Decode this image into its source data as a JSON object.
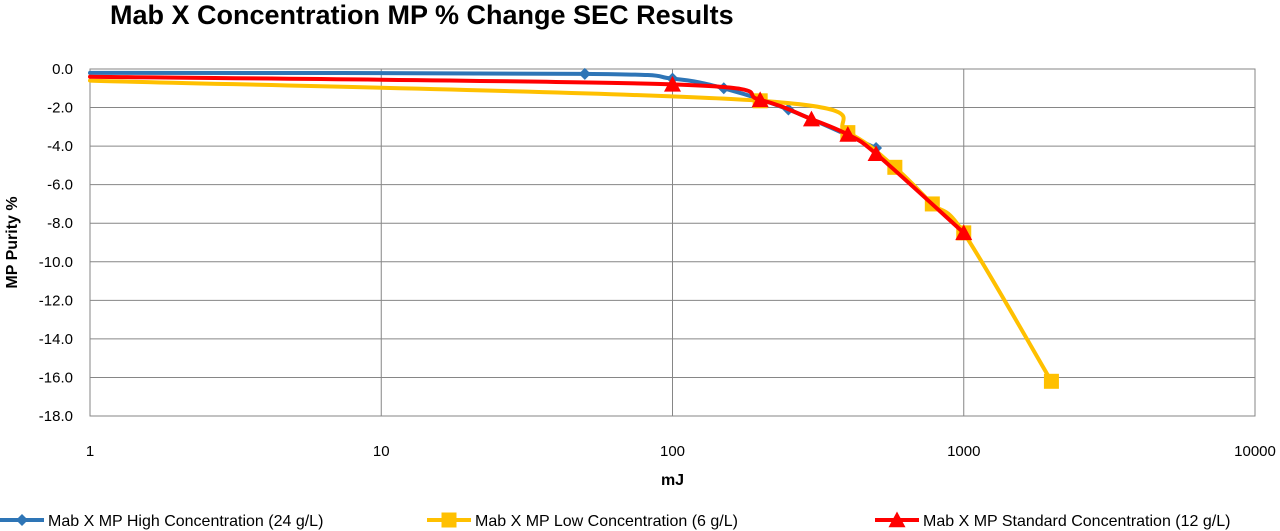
{
  "chart_data": {
    "type": "line",
    "title": "Mab X Concentration MP % Change SEC Results",
    "xlabel": "mJ",
    "ylabel": "MP Purity %",
    "x_scale": "log",
    "xlim": [
      1,
      10000
    ],
    "ylim": [
      -18,
      0
    ],
    "x_ticks": [
      1,
      10,
      100,
      1000,
      10000
    ],
    "x_tick_labels": [
      "1",
      "10",
      "100",
      "1000",
      "10000"
    ],
    "y_ticks": [
      0,
      -2,
      -4,
      -6,
      -8,
      -10,
      -12,
      -14,
      -16,
      -18
    ],
    "y_tick_labels": [
      "0.0",
      "-2.0",
      "-4.0",
      "-6.0",
      "-8.0",
      "-10.0",
      "-12.0",
      "-14.0",
      "-16.0",
      "-18.0"
    ],
    "grid": true,
    "legend_position": "bottom",
    "series": [
      {
        "name": "Mab X MP High Concentration (24 g/L)",
        "color": "#2E75B6",
        "marker": "diamond",
        "points": [
          [
            1,
            -0.2
          ],
          [
            50,
            -0.25
          ],
          [
            100,
            -0.5
          ],
          [
            150,
            -1.0
          ],
          [
            250,
            -2.1
          ],
          [
            500,
            -4.1
          ]
        ]
      },
      {
        "name": "Mab X MP Low Concentration (6 g/L)",
        "color": "#FFC000",
        "marker": "square",
        "points": [
          [
            1,
            -0.6
          ],
          [
            200,
            -1.65
          ],
          [
            400,
            -3.3
          ],
          [
            580,
            -5.1
          ],
          [
            780,
            -7.0
          ],
          [
            1000,
            -8.5
          ],
          [
            2000,
            -16.2
          ]
        ]
      },
      {
        "name": "Mab X MP Standard Concentration (12 g/L)",
        "color": "#FF0000",
        "marker": "triangle",
        "points": [
          [
            1,
            -0.4
          ],
          [
            100,
            -0.8
          ],
          [
            200,
            -1.6
          ],
          [
            300,
            -2.6
          ],
          [
            400,
            -3.4
          ],
          [
            500,
            -4.4
          ],
          [
            1000,
            -8.5
          ]
        ]
      }
    ]
  }
}
